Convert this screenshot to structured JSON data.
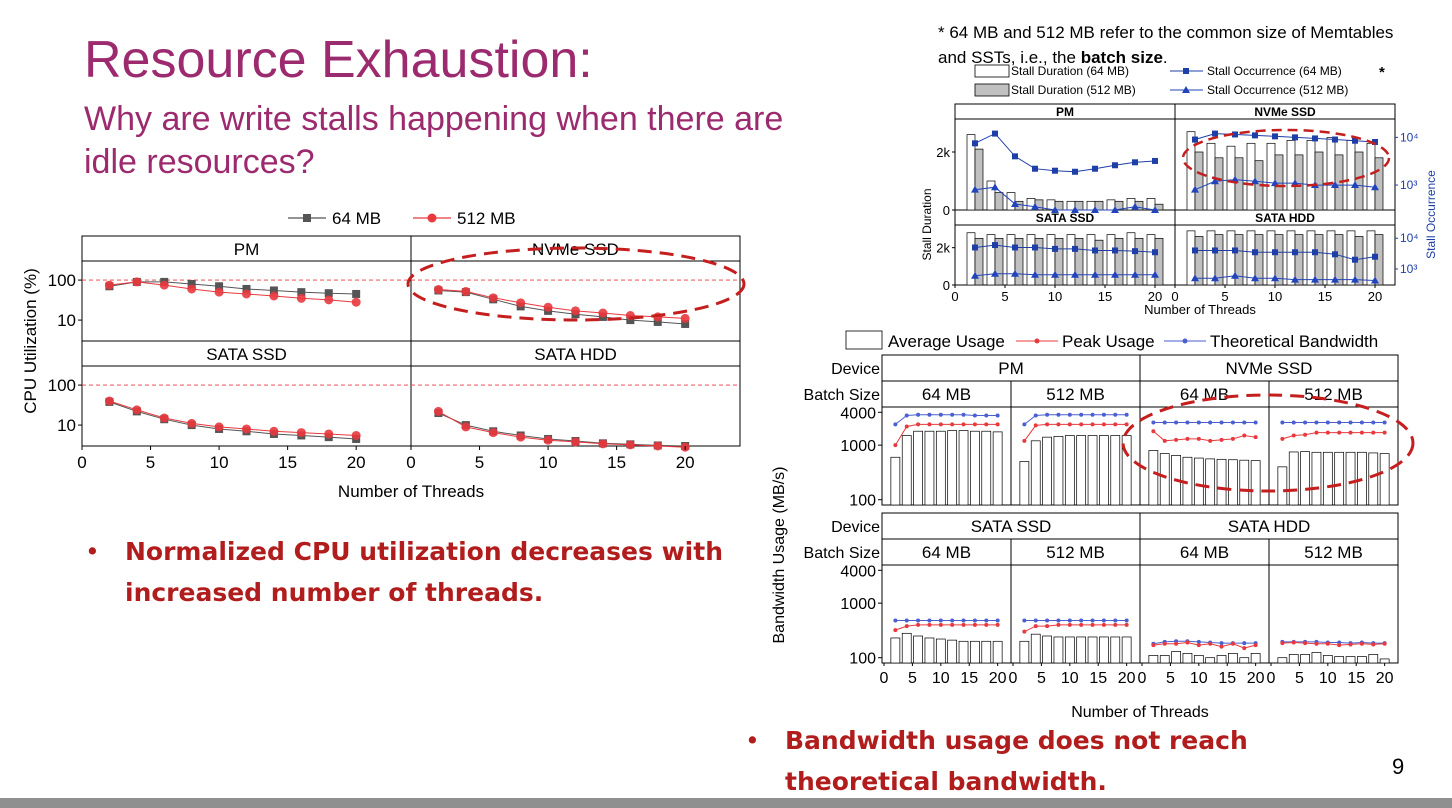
{
  "slide": {
    "title": "Resource Exhaustion:",
    "subtitle": "Why are write stalls happening when there are idle resources?",
    "note_prefix": "* 64 MB and 512 MB refer to the common size of Memtables and SSTs, i.e., the ",
    "note_bold": "batch size",
    "note_suffix": ".",
    "bullet1": "Normalized CPU utilization decreases with increased number of threads.",
    "bullet2": "Bandwidth usage does not reach theoretical bandwidth.",
    "page_number": "9"
  },
  "chart_data": [
    {
      "type": "scatter",
      "ylabel": "CPU Utilization (%)",
      "xlabel": "Number of Threads",
      "yscale": "log",
      "ylim": [
        3,
        300
      ],
      "xlim": [
        0,
        24
      ],
      "xticks": [
        0,
        5,
        10,
        15,
        20
      ],
      "yticks": [
        10,
        100
      ],
      "legend": [
        "64 MB",
        "512 MB"
      ],
      "legend_position": "top",
      "series_colors": {
        "64 MB": "#555555",
        "512 MB": "#e8393e"
      },
      "reference_line": 100,
      "x": [
        2,
        4,
        6,
        8,
        10,
        12,
        14,
        16,
        18,
        20
      ],
      "panels": [
        {
          "name": "PM",
          "series": [
            {
              "name": "64 MB",
              "values": [
                70,
                90,
                90,
                80,
                70,
                60,
                55,
                50,
                47,
                45
              ]
            },
            {
              "name": "512 MB",
              "values": [
                75,
                90,
                75,
                60,
                50,
                45,
                40,
                35,
                32,
                28
              ]
            }
          ]
        },
        {
          "name": "NVMe SSD",
          "series": [
            {
              "name": "64 MB",
              "values": [
                55,
                50,
                33,
                22,
                17,
                14,
                12,
                10,
                9,
                8
              ]
            },
            {
              "name": "512 MB",
              "values": [
                58,
                52,
                36,
                27,
                21,
                17,
                15,
                13,
                12,
                11
              ]
            }
          ]
        },
        {
          "name": "SATA SSD",
          "series": [
            {
              "name": "64 MB",
              "values": [
                38,
                22,
                14,
                10,
                8,
                7,
                6,
                5.5,
                5,
                4.5
              ]
            },
            {
              "name": "512 MB",
              "values": [
                40,
                24,
                15,
                11,
                9,
                8,
                7,
                6.5,
                6,
                5.5
              ]
            }
          ]
        },
        {
          "name": "SATA HDD",
          "series": [
            {
              "name": "64 MB",
              "values": [
                20,
                10,
                7,
                5.5,
                4.5,
                4,
                3.5,
                3.3,
                3.1,
                3
              ]
            },
            {
              "name": "512 MB",
              "values": [
                22,
                9,
                6.5,
                5,
                4.2,
                3.8,
                3.4,
                3.2,
                3,
                2.8
              ]
            }
          ]
        }
      ]
    },
    {
      "type": "bar",
      "ylabel": "Stall Duration",
      "y2label": "Stall Occurrence",
      "xlabel": "Number of Threads",
      "ylim": [
        0,
        3000
      ],
      "yticks": [
        0,
        2000
      ],
      "ytick_labels": [
        "0",
        "2k"
      ],
      "y2scale": "log",
      "y2lim": [
        300,
        20000
      ],
      "y2ticks": [
        1000,
        10000
      ],
      "y2tick_labels": [
        "10³",
        "10⁴"
      ],
      "xlim": [
        0,
        22
      ],
      "xticks": [
        0,
        5,
        10,
        15,
        20
      ],
      "legend": [
        "Stall Duration (64 MB)",
        "Stall Duration (512 MB)",
        "Stall Occurrence (64 MB)",
        "Stall Occurrence (512 MB)"
      ],
      "legend_marker": "*",
      "legend_position": "top",
      "colors": {
        "bar64": "#ffffff",
        "bar512": "#c0c0c0",
        "occ64": "#1f3fa8",
        "occ512": "#2244bb"
      },
      "x": [
        2,
        4,
        6,
        8,
        10,
        12,
        14,
        16,
        18,
        20
      ],
      "panels": [
        {
          "name": "PM",
          "duration_64": [
            2600,
            1000,
            600,
            400,
            350,
            300,
            300,
            350,
            400,
            400
          ],
          "duration_512": [
            2100,
            600,
            300,
            350,
            300,
            300,
            300,
            300,
            300,
            200
          ],
          "occurrence_64": [
            7500,
            12000,
            4000,
            2200,
            2000,
            1900,
            2200,
            2600,
            3000,
            3200
          ],
          "occurrence_512": [
            800,
            900,
            400,
            350,
            300,
            300,
            300,
            300,
            350,
            300
          ]
        },
        {
          "name": "NVMe SSD",
          "duration_64": [
            2700,
            2300,
            2200,
            2300,
            2300,
            2400,
            2400,
            2500,
            2400,
            2300
          ],
          "duration_512": [
            2000,
            1800,
            1800,
            1700,
            1900,
            1900,
            2000,
            1900,
            2000,
            1800
          ],
          "occurrence_64": [
            9000,
            12000,
            11500,
            11000,
            10500,
            10000,
            9500,
            9000,
            8500,
            8000
          ],
          "occurrence_512": [
            800,
            1200,
            1300,
            1200,
            1100,
            1100,
            1000,
            1000,
            1000,
            900
          ]
        },
        {
          "name": "SATA SSD",
          "duration_64": [
            2800,
            2700,
            2700,
            2700,
            2700,
            2700,
            2700,
            2700,
            2800,
            2700
          ],
          "duration_512": [
            2500,
            2500,
            2500,
            2500,
            2500,
            2500,
            2400,
            2500,
            2500,
            2500
          ],
          "occurrence_64": [
            5000,
            6000,
            5000,
            5000,
            4500,
            4500,
            4000,
            4000,
            3800,
            3500
          ],
          "occurrence_512": [
            600,
            700,
            700,
            650,
            650,
            650,
            650,
            650,
            650,
            650
          ]
        },
        {
          "name": "SATA HDD",
          "duration_64": [
            2900,
            2900,
            2900,
            2900,
            2900,
            2900,
            2900,
            2900,
            2900,
            2900
          ],
          "duration_512": [
            2600,
            2700,
            2700,
            2700,
            2700,
            2700,
            2700,
            2700,
            2600,
            2700
          ],
          "occurrence_64": [
            4000,
            4000,
            4000,
            3500,
            3500,
            3500,
            3500,
            3000,
            2000,
            2500
          ],
          "occurrence_512": [
            500,
            500,
            600,
            500,
            500,
            450,
            450,
            450,
            450,
            420
          ]
        }
      ]
    },
    {
      "type": "bar",
      "ylabel": "Bandwidth Usage (MB/s)",
      "xlabel": "Number of Threads",
      "yscale": "log",
      "ylim": [
        80,
        5000
      ],
      "yticks": [
        100,
        1000,
        4000
      ],
      "legend": [
        "Average Usage",
        "Peak Usage",
        "Theoretical Bandwidth"
      ],
      "legend_position": "top",
      "colors": {
        "peak": "#e8393e",
        "theoretical": "#4a5fd0"
      },
      "device_label": "Device",
      "batch_label": "Batch Size",
      "x": [
        2,
        4,
        6,
        8,
        10,
        12,
        14,
        16,
        18,
        20
      ],
      "xticks": [
        0,
        5,
        10,
        15,
        20
      ],
      "panels": [
        {
          "device": "PM",
          "batch": "64 MB",
          "average": [
            600,
            1500,
            1800,
            1800,
            1800,
            1850,
            1850,
            1800,
            1800,
            1750
          ],
          "peak": [
            1000,
            2200,
            2400,
            2400,
            2400,
            2400,
            2400,
            2400,
            2400,
            2400
          ],
          "theoretical": [
            2400,
            3500,
            3600,
            3600,
            3600,
            3600,
            3600,
            3500,
            3500,
            3500
          ]
        },
        {
          "device": "PM",
          "batch": "512 MB",
          "average": [
            500,
            1200,
            1400,
            1450,
            1500,
            1500,
            1500,
            1500,
            1500,
            1500
          ],
          "peak": [
            1200,
            2300,
            2400,
            2400,
            2400,
            2400,
            2400,
            2400,
            2400,
            2400
          ],
          "theoretical": [
            2400,
            3500,
            3600,
            3600,
            3600,
            3600,
            3600,
            3600,
            3600,
            3600
          ]
        },
        {
          "device": "NVMe SSD",
          "batch": "64 MB",
          "average": [
            800,
            700,
            650,
            600,
            580,
            560,
            550,
            540,
            530,
            520
          ],
          "peak": [
            1800,
            1200,
            1250,
            1300,
            1300,
            1200,
            1250,
            1300,
            1500,
            1400
          ],
          "theoretical": [
            2600,
            2600,
            2600,
            2600,
            2600,
            2600,
            2600,
            2600,
            2600,
            2600
          ]
        },
        {
          "device": "NVMe SSD",
          "batch": "512 MB",
          "average": [
            400,
            750,
            760,
            740,
            740,
            740,
            740,
            740,
            720,
            700
          ],
          "peak": [
            1300,
            1500,
            1550,
            1700,
            1700,
            1700,
            1700,
            1700,
            1700,
            1700
          ],
          "theoretical": [
            2600,
            2600,
            2600,
            2600,
            2600,
            2600,
            2600,
            2600,
            2600,
            2600
          ]
        },
        {
          "device": "SATA SSD",
          "batch": "64 MB",
          "average": [
            230,
            280,
            250,
            230,
            220,
            210,
            200,
            200,
            200,
            200
          ],
          "peak": [
            320,
            380,
            400,
            400,
            400,
            400,
            400,
            400,
            400,
            400
          ],
          "theoretical": [
            480,
            480,
            480,
            480,
            480,
            480,
            480,
            480,
            480,
            480
          ]
        },
        {
          "device": "SATA SSD",
          "batch": "512 MB",
          "average": [
            200,
            270,
            250,
            240,
            240,
            240,
            240,
            240,
            240,
            240
          ],
          "peak": [
            300,
            380,
            380,
            400,
            400,
            400,
            400,
            400,
            400,
            400
          ],
          "theoretical": [
            480,
            480,
            480,
            480,
            480,
            480,
            480,
            480,
            480,
            480
          ]
        },
        {
          "device": "SATA HDD",
          "batch": "64 MB",
          "average": [
            110,
            110,
            130,
            120,
            110,
            100,
            110,
            120,
            100,
            120
          ],
          "peak": [
            170,
            180,
            180,
            190,
            170,
            180,
            160,
            180,
            150,
            170
          ],
          "theoretical": [
            180,
            195,
            200,
            200,
            195,
            190,
            185,
            185,
            185,
            185
          ]
        },
        {
          "device": "SATA HDD",
          "batch": "512 MB",
          "average": [
            100,
            115,
            115,
            125,
            110,
            105,
            105,
            105,
            115,
            95
          ],
          "peak": [
            185,
            190,
            185,
            180,
            180,
            170,
            175,
            180,
            175,
            180
          ],
          "theoretical": [
            195,
            195,
            195,
            195,
            190,
            190,
            185,
            190,
            185,
            185
          ]
        }
      ]
    }
  ]
}
